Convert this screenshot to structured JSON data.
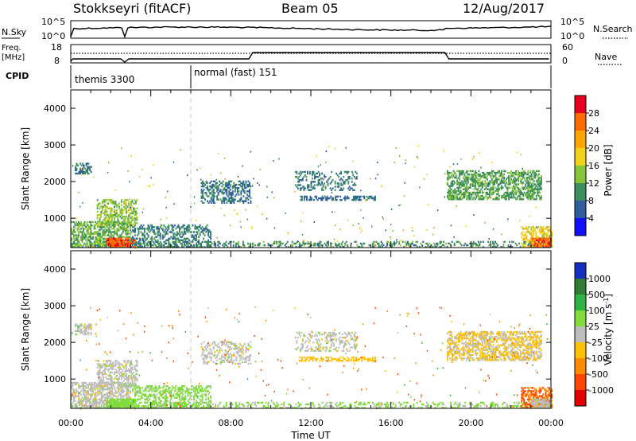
{
  "header": {
    "radar": "Stokkseyri (fitACF)",
    "beam": "Beam 05",
    "date": "12/Aug/2017"
  },
  "nsky_panel": {
    "left_label": "N.Sky",
    "right_label": "N.Search",
    "left_ticks": [
      "10^5",
      "10^0"
    ],
    "right_ticks": [
      "10^5",
      "10^0"
    ]
  },
  "freq_panel": {
    "left_label_1": "Freq.",
    "left_label_2": "[MHz]",
    "right_label": "Nave",
    "left_ticks": [
      "18",
      "8"
    ],
    "right_ticks": [
      "60",
      "0"
    ]
  },
  "cpid_panel": {
    "label": "CPID",
    "segments": [
      "themis 3300",
      "normal (fast) 151"
    ]
  },
  "time_axis": {
    "title": "Time UT",
    "ticks": [
      "00:00",
      "04:00",
      "08:00",
      "12:00",
      "16:00",
      "20:00",
      "00:00"
    ]
  },
  "power_colorbar": {
    "title": "Power [dB]",
    "ticks": [
      "28",
      "24",
      "20",
      "16",
      "12",
      "8",
      "4"
    ],
    "colors": [
      "#e8001e",
      "#ff6a00",
      "#ffa500",
      "#f2d21a",
      "#86c43a",
      "#3c8e5c",
      "#2e5e9e",
      "#1010ff"
    ]
  },
  "velocity_colorbar": {
    "title": "Velocity [m s",
    "title_sup": "-1",
    "title_end": "]",
    "ticks": [
      "1000",
      "500",
      "100",
      "25",
      "-25",
      "-100",
      "-500",
      "-1000"
    ],
    "colors": [
      "#1530c0",
      "#2e7d32",
      "#2fb344",
      "#7fdc3a",
      "#bdbdbd",
      "#ffc107",
      "#ff8c00",
      "#ff4500",
      "#e00000"
    ]
  },
  "chart_data": [
    {
      "type": "heatmap",
      "title": "Power",
      "xlabel": "Time UT",
      "ylabel": "Slant Range [km]",
      "xlim": [
        0,
        24
      ],
      "ylim": [
        200,
        4500
      ],
      "yticks": [
        "1000",
        "2000",
        "3000",
        "4000"
      ],
      "clim": [
        0,
        30
      ],
      "regions": [
        {
          "t0": 0.0,
          "t1": 24.0,
          "r0": 200,
          "r1": 350,
          "level": 10,
          "density": 0.3
        },
        {
          "t0": 0.0,
          "t1": 3.0,
          "r0": 200,
          "r1": 900,
          "level": 12,
          "density": 0.6
        },
        {
          "t0": 1.3,
          "t1": 3.3,
          "r0": 800,
          "r1": 1500,
          "level": 14,
          "density": 0.45
        },
        {
          "t0": 1.8,
          "t1": 3.2,
          "r0": 200,
          "r1": 450,
          "level": 27,
          "density": 0.85
        },
        {
          "t0": 3.0,
          "t1": 7.0,
          "r0": 200,
          "r1": 800,
          "level": 9,
          "density": 0.4
        },
        {
          "t0": 0.2,
          "t1": 1.0,
          "r0": 2200,
          "r1": 2500,
          "level": 8,
          "density": 0.5
        },
        {
          "t0": 6.5,
          "t1": 9.0,
          "r0": 1400,
          "r1": 2000,
          "level": 8,
          "density": 0.4
        },
        {
          "t0": 11.2,
          "t1": 14.3,
          "r0": 1750,
          "r1": 2250,
          "level": 8,
          "density": 0.3
        },
        {
          "t0": 11.4,
          "t1": 15.2,
          "r0": 1480,
          "r1": 1580,
          "level": 7,
          "density": 0.55
        },
        {
          "t0": 18.8,
          "t1": 23.5,
          "r0": 1500,
          "r1": 2300,
          "level": 11,
          "density": 0.55
        },
        {
          "t0": 22.5,
          "t1": 24.0,
          "r0": 200,
          "r1": 750,
          "level": 18,
          "density": 0.55
        },
        {
          "t0": 23.0,
          "t1": 24.0,
          "r0": 200,
          "r1": 450,
          "level": 26,
          "density": 0.75
        }
      ]
    },
    {
      "type": "heatmap",
      "title": "Velocity",
      "xlabel": "Time UT",
      "ylabel": "Slant Range [km]",
      "xlim": [
        0,
        24
      ],
      "ylim": [
        200,
        4500
      ],
      "yticks": [
        "1000",
        "2000",
        "3000",
        "4000"
      ],
      "clim": [
        -1000,
        1000
      ],
      "regions": [
        {
          "t0": 0.0,
          "t1": 24.0,
          "r0": 200,
          "r1": 350,
          "level": 40,
          "density": 0.3
        },
        {
          "t0": 0.0,
          "t1": 3.0,
          "r0": 200,
          "r1": 900,
          "level": 0,
          "density": 0.6
        },
        {
          "t0": 1.3,
          "t1": 3.3,
          "r0": 800,
          "r1": 1500,
          "level": 0,
          "density": 0.45
        },
        {
          "t0": 1.8,
          "t1": 3.2,
          "r0": 200,
          "r1": 450,
          "level": 60,
          "density": 0.85
        },
        {
          "t0": 3.0,
          "t1": 7.0,
          "r0": 200,
          "r1": 800,
          "level": 50,
          "density": 0.4
        },
        {
          "t0": 0.2,
          "t1": 1.0,
          "r0": 2200,
          "r1": 2500,
          "level": 0,
          "density": 0.5
        },
        {
          "t0": 6.5,
          "t1": 9.0,
          "r0": 1400,
          "r1": 2000,
          "level": 0,
          "density": 0.4
        },
        {
          "t0": 11.2,
          "t1": 14.3,
          "r0": 1750,
          "r1": 2250,
          "level": 0,
          "density": 0.3
        },
        {
          "t0": 11.4,
          "t1": 15.2,
          "r0": 1480,
          "r1": 1580,
          "level": -60,
          "density": 0.55
        },
        {
          "t0": 18.8,
          "t1": 23.5,
          "r0": 1500,
          "r1": 2300,
          "level": -30,
          "density": 0.55
        },
        {
          "t0": 22.5,
          "t1": 24.0,
          "r0": 200,
          "r1": 750,
          "level": -500,
          "density": 0.55
        },
        {
          "t0": 23.0,
          "t1": 24.0,
          "r0": 200,
          "r1": 450,
          "level": 0,
          "density": 0.75
        }
      ]
    }
  ]
}
